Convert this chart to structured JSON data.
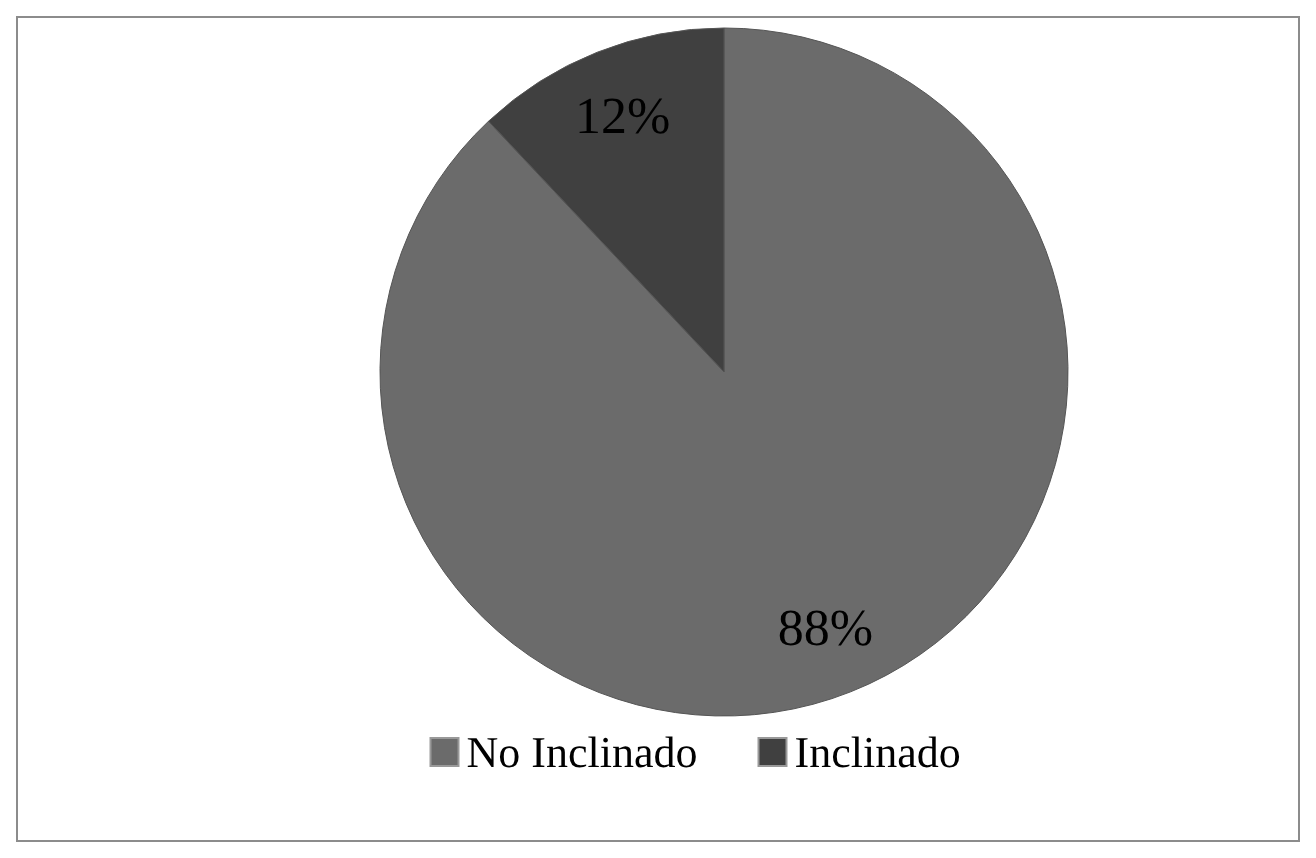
{
  "chart_data": {
    "type": "pie",
    "categories": [
      "No Inclinado",
      "Inclinado"
    ],
    "values": [
      88,
      12
    ],
    "colors": [
      "#6b6b6b",
      "#404040"
    ],
    "value_labels": [
      "88%",
      "12%"
    ],
    "legend": "bottom"
  }
}
